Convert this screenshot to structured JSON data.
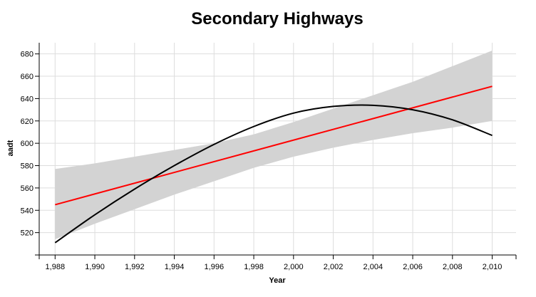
{
  "chart_data": {
    "type": "line",
    "title": "Secondary Highways",
    "xlabel": "Year",
    "ylabel": "aadt",
    "xlim": [
      1987.2,
      2011.2
    ],
    "ylim": [
      500,
      690
    ],
    "x_ticks": [
      1988,
      1990,
      1992,
      1994,
      1996,
      1998,
      2000,
      2002,
      2004,
      2006,
      2008,
      2010
    ],
    "x_tick_labels": [
      "1,988",
      "1,990",
      "1,992",
      "1,994",
      "1,996",
      "1,998",
      "2,000",
      "2,002",
      "2,004",
      "2,006",
      "2,008",
      "2,010"
    ],
    "y_ticks": [
      520,
      540,
      560,
      580,
      600,
      620,
      640,
      660,
      680
    ],
    "y_tick_labels": [
      "520",
      "540",
      "560",
      "580",
      "600",
      "620",
      "640",
      "660",
      "680"
    ],
    "grid": true,
    "series": [
      {
        "kind": "confidence_band",
        "color": "#d3d3d3",
        "x": [
          1988,
          1990,
          1992,
          1994,
          1996,
          1998,
          2000,
          2002,
          2004,
          2006,
          2008,
          2010
        ],
        "lower": [
          514,
          528,
          541,
          554,
          566,
          578,
          588,
          596,
          603,
          609,
          614,
          620
        ],
        "upper": [
          577,
          582,
          588,
          594,
          600,
          608,
          619,
          631,
          643,
          655,
          669,
          683
        ]
      },
      {
        "kind": "linear_fit",
        "color": "#ff0000",
        "x": [
          1988,
          2010
        ],
        "y": [
          545,
          651
        ]
      },
      {
        "kind": "smooth_fit",
        "color": "#000000",
        "x": [
          1988,
          1990,
          1992,
          1994,
          1996,
          1998,
          2000,
          2002,
          2004,
          2006,
          2008,
          2010
        ],
        "y": [
          511,
          536,
          559,
          580,
          599,
          615,
          627,
          633,
          634,
          630,
          621,
          607
        ]
      }
    ]
  }
}
